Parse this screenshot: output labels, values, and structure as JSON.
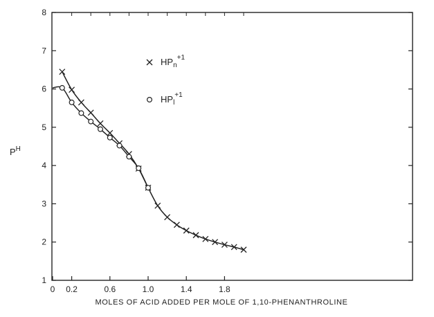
{
  "chart_data": {
    "type": "line",
    "title": "",
    "xlabel": "MOLES OF ACID ADDED PER MOLE OF 1,10-PHENANTHROLINE",
    "ylabel": {
      "main": "P",
      "sup": "H"
    },
    "xlim": [
      0,
      2.1
    ],
    "ylim": [
      1,
      8
    ],
    "x_ticks": [
      {
        "value": 0,
        "label": "0"
      },
      {
        "value": 0.2,
        "label": "0.2"
      },
      {
        "value": 0.6,
        "label": "0.6"
      },
      {
        "value": 1.0,
        "label": "1.0"
      },
      {
        "value": 1.4,
        "label": "1.4"
      },
      {
        "value": 1.8,
        "label": "1.8"
      }
    ],
    "y_ticks": [
      {
        "value": 1,
        "label": "1"
      },
      {
        "value": 2,
        "label": "2"
      },
      {
        "value": 3,
        "label": "3"
      },
      {
        "value": 4,
        "label": "4"
      },
      {
        "value": 5,
        "label": "5"
      },
      {
        "value": 6,
        "label": "6"
      },
      {
        "value": 7,
        "label": "7"
      },
      {
        "value": 8,
        "label": "8"
      }
    ],
    "grid": false,
    "legend_position": "upper-middle",
    "series": [
      {
        "name": {
          "base": "HP",
          "sub": "n",
          "sup": "+1"
        },
        "marker": "x",
        "x": [
          0.1,
          0.2,
          0.3,
          0.4,
          0.5,
          0.6,
          0.7,
          0.8,
          0.9,
          1.0,
          1.1,
          1.2,
          1.3,
          1.4,
          1.5,
          1.6,
          1.7,
          1.8,
          1.9,
          2.0
        ],
        "y": [
          6.45,
          5.98,
          5.65,
          5.38,
          5.1,
          4.85,
          4.58,
          4.3,
          3.92,
          3.42,
          2.95,
          2.65,
          2.45,
          2.3,
          2.18,
          2.08,
          2.0,
          1.93,
          1.87,
          1.8
        ]
      },
      {
        "name": {
          "base": "HP",
          "sub": "l",
          "sup": "+1"
        },
        "marker": "o",
        "x": [
          0.1,
          0.2,
          0.3,
          0.4,
          0.5,
          0.6,
          0.7,
          0.8,
          0.9,
          1.0
        ],
        "y": [
          6.03,
          5.65,
          5.37,
          5.15,
          4.95,
          4.73,
          4.52,
          4.23,
          3.93,
          3.42
        ]
      }
    ]
  }
}
